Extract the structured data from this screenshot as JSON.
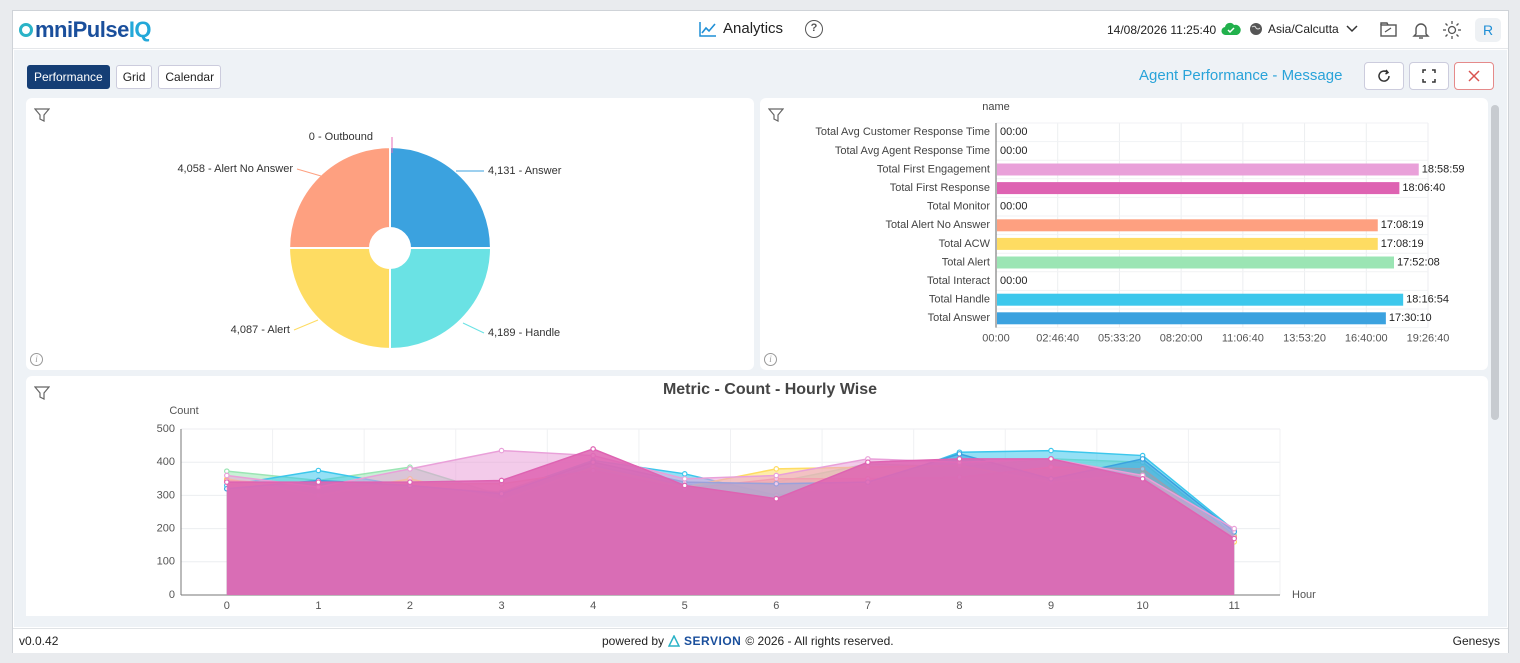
{
  "app": {
    "logo_main": "mniPulse",
    "logo_iq": "IQ",
    "center_title": "Analytics",
    "help_label": "?",
    "datetime": "14/08/2026 11:25:40",
    "timezone": "Asia/Calcutta",
    "avatar_letter": "R",
    "status_color": "#22b14c"
  },
  "toolbar": {
    "tabs": [
      {
        "label": "Performance",
        "active": true
      },
      {
        "label": "Grid",
        "active": false
      },
      {
        "label": "Calendar",
        "active": false
      }
    ],
    "page_heading": "Agent Performance - Message"
  },
  "footer": {
    "version": "v0.0.42",
    "powered_by": "powered by",
    "brand": "SERVION",
    "copyright": "© 2026 - All rights reserved.",
    "vendor": "Genesys"
  },
  "chart_data": [
    {
      "type": "pie",
      "variant": "nightingale-rose",
      "slices": [
        {
          "label": "Answer",
          "value": 4131,
          "display": "4,131 - Answer",
          "color": "#3ba2df"
        },
        {
          "label": "Handle",
          "value": 4189,
          "display": "4,189 - Handle",
          "color": "#6ae2e4"
        },
        {
          "label": "Alert",
          "value": 4087,
          "display": "4,087 - Alert",
          "color": "#fedc62"
        },
        {
          "label": "Alert No Answer",
          "value": 4058,
          "display": "4,058 - Alert No Answer",
          "color": "#fea080"
        },
        {
          "label": "Outbound",
          "value": 0,
          "display": "0 - Outbound",
          "color": "#e86db9"
        }
      ]
    },
    {
      "type": "bar",
      "orientation": "horizontal",
      "title": "name",
      "unit": "seconds",
      "xlim": [
        0,
        70000
      ],
      "x_ticks": [
        "00:00",
        "02:46:40",
        "05:33:20",
        "08:20:00",
        "11:06:40",
        "13:53:20",
        "16:40:00",
        "19:26:40"
      ],
      "bars": [
        {
          "category": "Total Avg Customer Response Time",
          "value": 0,
          "label": "00:00",
          "color": "#e7a0d8"
        },
        {
          "category": "Total Avg Agent Response Time",
          "value": 0,
          "label": "00:00",
          "color": "#e7a0d8"
        },
        {
          "category": "Total First Engagement",
          "value": 68339,
          "label": "18:58:59",
          "color": "#e9a0d9"
        },
        {
          "category": "Total First Response",
          "value": 65200,
          "label": "18:06:40",
          "color": "#de63b2"
        },
        {
          "category": "Total Monitor",
          "value": 0,
          "label": "00:00",
          "color": "#e7a0d8"
        },
        {
          "category": "Total Alert No Answer",
          "value": 61699,
          "label": "17:08:19",
          "color": "#fea080"
        },
        {
          "category": "Total ACW",
          "value": 61699,
          "label": "17:08:19",
          "color": "#fedc62"
        },
        {
          "category": "Total Alert",
          "value": 64328,
          "label": "17:52:08",
          "color": "#9be5b4"
        },
        {
          "category": "Total Interact",
          "value": 0,
          "label": "00:00",
          "color": "#e7a0d8"
        },
        {
          "category": "Total Handle",
          "value": 65814,
          "label": "18:16:54",
          "color": "#3cc7ec"
        },
        {
          "category": "Total Answer",
          "value": 63010,
          "label": "17:30:10",
          "color": "#3ba2df"
        }
      ]
    },
    {
      "type": "area",
      "title": "Metric - Count - Hourly Wise",
      "ylabel": "Count",
      "xlabel": "Hour",
      "ylim": [
        0,
        500
      ],
      "y_ticks": [
        0,
        100,
        200,
        300,
        400,
        500
      ],
      "x": [
        0,
        1,
        2,
        3,
        4,
        5,
        6,
        7,
        8,
        9,
        10,
        11
      ],
      "series": [
        {
          "color": "#9be5b4",
          "values": [
            373,
            345,
            385,
            300,
            390,
            330,
            340,
            395,
            385,
            410,
            400,
            180
          ]
        },
        {
          "color": "#3cc7ec",
          "values": [
            330,
            375,
            325,
            310,
            405,
            365,
            300,
            330,
            430,
            435,
            420,
            195
          ]
        },
        {
          "color": "#fedc62",
          "values": [
            350,
            300,
            350,
            285,
            385,
            325,
            380,
            385,
            390,
            340,
            365,
            160
          ]
        },
        {
          "color": "#fea080",
          "values": [
            345,
            330,
            335,
            335,
            375,
            320,
            350,
            350,
            355,
            385,
            380,
            175
          ]
        },
        {
          "color": "#3ba2df",
          "values": [
            320,
            345,
            330,
            305,
            400,
            340,
            335,
            340,
            425,
            350,
            410,
            190
          ]
        },
        {
          "color": "#e9a0d9",
          "values": [
            360,
            325,
            380,
            435,
            420,
            350,
            360,
            410,
            400,
            410,
            360,
            200
          ]
        },
        {
          "color": "#de63b2",
          "values": [
            340,
            340,
            340,
            345,
            440,
            330,
            290,
            400,
            410,
            410,
            350,
            170
          ]
        }
      ]
    }
  ]
}
